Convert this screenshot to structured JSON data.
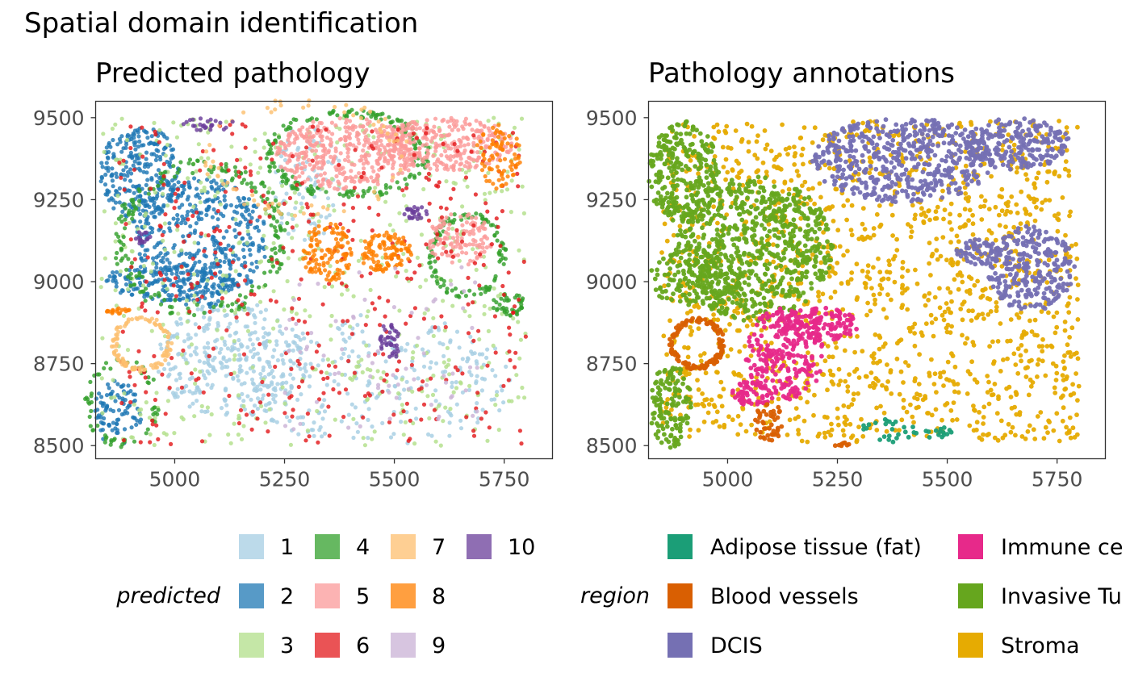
{
  "figure_title": "Spatial domain identification",
  "chart_data": [
    {
      "type": "scatter",
      "title": "Predicted pathology",
      "xlabel": "",
      "ylabel": "",
      "xlim": [
        4820,
        5860
      ],
      "ylim": [
        8460,
        9550
      ],
      "x_ticks": [
        5000,
        5250,
        5500,
        5750
      ],
      "y_ticks": [
        8500,
        8750,
        9000,
        9250,
        9500
      ],
      "x_tick_labels": [
        "5000",
        "5250",
        "5500",
        "5750"
      ],
      "y_tick_labels": [
        "8500",
        "8750",
        "9000",
        "9250",
        "9500"
      ],
      "legend_title": "predicted",
      "legend_position": "bottom",
      "categories": [
        {
          "name": "1",
          "color": "#A6CEE3"
        },
        {
          "name": "2",
          "color": "#1F78B4"
        },
        {
          "name": "3",
          "color": "#B2DF8A"
        },
        {
          "name": "4",
          "color": "#33A02C"
        },
        {
          "name": "5",
          "color": "#FB9A99"
        },
        {
          "name": "6",
          "color": "#E31A1C"
        },
        {
          "name": "7",
          "color": "#FDBF6F"
        },
        {
          "name": "8",
          "color": "#FF7F00"
        },
        {
          "name": "9",
          "color": "#CAB2D6"
        },
        {
          "name": "10",
          "color": "#6A3D9A"
        }
      ],
      "regions": [
        {
          "category": "1",
          "shape": "blob",
          "cx": 5130,
          "cy": 8760,
          "rx": 170,
          "ry": 180,
          "count": 320
        },
        {
          "category": "1",
          "shape": "blob",
          "cx": 5460,
          "cy": 8700,
          "rx": 320,
          "ry": 200,
          "count": 260
        },
        {
          "category": "1",
          "shape": "blob",
          "cx": 5300,
          "cy": 9300,
          "rx": 80,
          "ry": 180,
          "count": 80
        },
        {
          "category": "2",
          "shape": "blob",
          "cx": 4920,
          "cy": 9330,
          "rx": 90,
          "ry": 150,
          "count": 260
        },
        {
          "category": "2",
          "shape": "blob",
          "cx": 5060,
          "cy": 9120,
          "rx": 150,
          "ry": 200,
          "count": 420
        },
        {
          "category": "2",
          "shape": "blob",
          "cx": 4990,
          "cy": 9000,
          "rx": 150,
          "ry": 60,
          "count": 160
        },
        {
          "category": "2",
          "shape": "blob",
          "cx": 4870,
          "cy": 8600,
          "rx": 55,
          "ry": 100,
          "count": 90
        },
        {
          "category": "3",
          "shape": "scatter",
          "xmin": 4830,
          "xmax": 5800,
          "ymin": 8500,
          "ymax": 9500,
          "count": 520
        },
        {
          "category": "4",
          "shape": "ring",
          "cx": 5060,
          "cy": 9130,
          "rx": 190,
          "ry": 230,
          "count": 200
        },
        {
          "category": "4",
          "shape": "ring",
          "cx": 5390,
          "cy": 9390,
          "rx": 180,
          "ry": 130,
          "count": 170
        },
        {
          "category": "4",
          "shape": "ring",
          "cx": 5665,
          "cy": 9080,
          "rx": 85,
          "ry": 125,
          "count": 110
        },
        {
          "category": "4",
          "shape": "blob",
          "cx": 5760,
          "cy": 8930,
          "rx": 40,
          "ry": 35,
          "count": 40
        },
        {
          "category": "4",
          "shape": "ring",
          "cx": 4880,
          "cy": 8630,
          "rx": 80,
          "ry": 130,
          "count": 60
        },
        {
          "category": "5",
          "shape": "blob",
          "cx": 5390,
          "cy": 9390,
          "rx": 160,
          "ry": 110,
          "count": 380
        },
        {
          "category": "5",
          "shape": "blob",
          "cx": 5620,
          "cy": 9420,
          "rx": 150,
          "ry": 80,
          "count": 300
        },
        {
          "category": "5",
          "shape": "blob",
          "cx": 5650,
          "cy": 9130,
          "rx": 75,
          "ry": 80,
          "count": 110
        },
        {
          "category": "6",
          "shape": "scatter",
          "xmin": 4870,
          "xmax": 5800,
          "ymin": 8500,
          "ymax": 9480,
          "count": 420
        },
        {
          "category": "7",
          "shape": "ring",
          "cx": 4925,
          "cy": 8810,
          "rx": 65,
          "ry": 80,
          "count": 110
        },
        {
          "category": "7",
          "shape": "ring",
          "cx": 5300,
          "cy": 9380,
          "rx": 230,
          "ry": 170,
          "count": 70
        },
        {
          "category": "8",
          "shape": "blob",
          "cx": 5350,
          "cy": 9090,
          "rx": 60,
          "ry": 90,
          "count": 120
        },
        {
          "category": "8",
          "shape": "blob",
          "cx": 5480,
          "cy": 9090,
          "rx": 60,
          "ry": 60,
          "count": 110
        },
        {
          "category": "8",
          "shape": "blob",
          "cx": 5740,
          "cy": 9380,
          "rx": 55,
          "ry": 100,
          "count": 80
        },
        {
          "category": "8",
          "shape": "blob",
          "cx": 4870,
          "cy": 8910,
          "rx": 30,
          "ry": 10,
          "count": 18
        },
        {
          "category": "9",
          "shape": "scatter",
          "xmin": 5250,
          "xmax": 5700,
          "ymin": 8550,
          "ymax": 9050,
          "count": 70
        },
        {
          "category": "10",
          "shape": "blob",
          "cx": 5490,
          "cy": 8820,
          "rx": 25,
          "ry": 60,
          "count": 40
        },
        {
          "category": "10",
          "shape": "blob",
          "cx": 5550,
          "cy": 9210,
          "rx": 30,
          "ry": 20,
          "count": 25
        },
        {
          "category": "10",
          "shape": "blob",
          "cx": 5080,
          "cy": 9480,
          "rx": 60,
          "ry": 20,
          "count": 25
        },
        {
          "category": "10",
          "shape": "blob",
          "cx": 4930,
          "cy": 9130,
          "rx": 20,
          "ry": 25,
          "count": 15
        }
      ]
    },
    {
      "type": "scatter",
      "title": "Pathology annotations",
      "xlabel": "",
      "ylabel": "",
      "xlim": [
        4820,
        5860
      ],
      "ylim": [
        8460,
        9550
      ],
      "x_ticks": [
        5000,
        5250,
        5500,
        5750
      ],
      "y_ticks": [
        8500,
        8750,
        9000,
        9250,
        9500
      ],
      "x_tick_labels": [
        "5000",
        "5250",
        "5500",
        "5750"
      ],
      "y_tick_labels": [
        "8500",
        "8750",
        "9000",
        "9250",
        "9500"
      ],
      "legend_title": "region",
      "legend_position": "bottom",
      "categories": [
        {
          "name": "Adipose tissue (fat)",
          "color": "#1B9E77"
        },
        {
          "name": "Blood vessels",
          "color": "#D95F02"
        },
        {
          "name": "DCIS",
          "color": "#7570B3"
        },
        {
          "name": "Immune ce",
          "color": "#E7298A"
        },
        {
          "name": "Invasive Tu",
          "color": "#66A61E"
        },
        {
          "name": "Stroma",
          "color": "#E6AB02"
        }
      ],
      "regions": [
        {
          "category": "Stroma",
          "shape": "scatter",
          "xmin": 4850,
          "xmax": 5800,
          "ymin": 8510,
          "ymax": 9490,
          "count": 1500
        },
        {
          "category": "Invasive Tu",
          "shape": "blob",
          "cx": 4900,
          "cy": 9330,
          "rx": 80,
          "ry": 160,
          "count": 260
        },
        {
          "category": "Invasive Tu",
          "shape": "blob",
          "cx": 5060,
          "cy": 9100,
          "rx": 180,
          "ry": 220,
          "count": 700
        },
        {
          "category": "Invasive Tu",
          "shape": "blob",
          "cx": 4930,
          "cy": 9010,
          "rx": 110,
          "ry": 90,
          "count": 160
        },
        {
          "category": "Invasive Tu",
          "shape": "blob",
          "cx": 4870,
          "cy": 8620,
          "rx": 50,
          "ry": 130,
          "count": 130
        },
        {
          "category": "DCIS",
          "shape": "blob",
          "cx": 5400,
          "cy": 9370,
          "rx": 210,
          "ry": 130,
          "count": 520
        },
        {
          "category": "DCIS",
          "shape": "blob",
          "cx": 5660,
          "cy": 9420,
          "rx": 120,
          "ry": 80,
          "count": 220
        },
        {
          "category": "DCIS",
          "shape": "blob",
          "cx": 5690,
          "cy": 9040,
          "rx": 100,
          "ry": 130,
          "count": 260
        },
        {
          "category": "DCIS",
          "shape": "blob",
          "cx": 5570,
          "cy": 9090,
          "rx": 50,
          "ry": 40,
          "count": 60
        },
        {
          "category": "Immune ce",
          "shape": "blob",
          "cx": 5130,
          "cy": 8780,
          "rx": 90,
          "ry": 140,
          "count": 240
        },
        {
          "category": "Immune ce",
          "shape": "blob",
          "cx": 5210,
          "cy": 8870,
          "rx": 90,
          "ry": 50,
          "count": 120
        },
        {
          "category": "Immune ce",
          "shape": "blob",
          "cx": 5060,
          "cy": 8660,
          "rx": 50,
          "ry": 40,
          "count": 60
        },
        {
          "category": "Blood vessels",
          "shape": "ring",
          "cx": 4930,
          "cy": 8810,
          "rx": 60,
          "ry": 75,
          "count": 140
        },
        {
          "category": "Blood vessels",
          "shape": "blob",
          "cx": 5095,
          "cy": 8570,
          "rx": 35,
          "ry": 60,
          "count": 45
        },
        {
          "category": "Blood vessels",
          "shape": "blob",
          "cx": 5260,
          "cy": 8505,
          "rx": 20,
          "ry": 8,
          "count": 8
        },
        {
          "category": "Adipose tissue (fat)",
          "shape": "blob",
          "cx": 5370,
          "cy": 8555,
          "rx": 70,
          "ry": 45,
          "count": 25
        },
        {
          "category": "Adipose tissue (fat)",
          "shape": "blob",
          "cx": 5480,
          "cy": 8540,
          "rx": 30,
          "ry": 25,
          "count": 14
        }
      ]
    }
  ]
}
